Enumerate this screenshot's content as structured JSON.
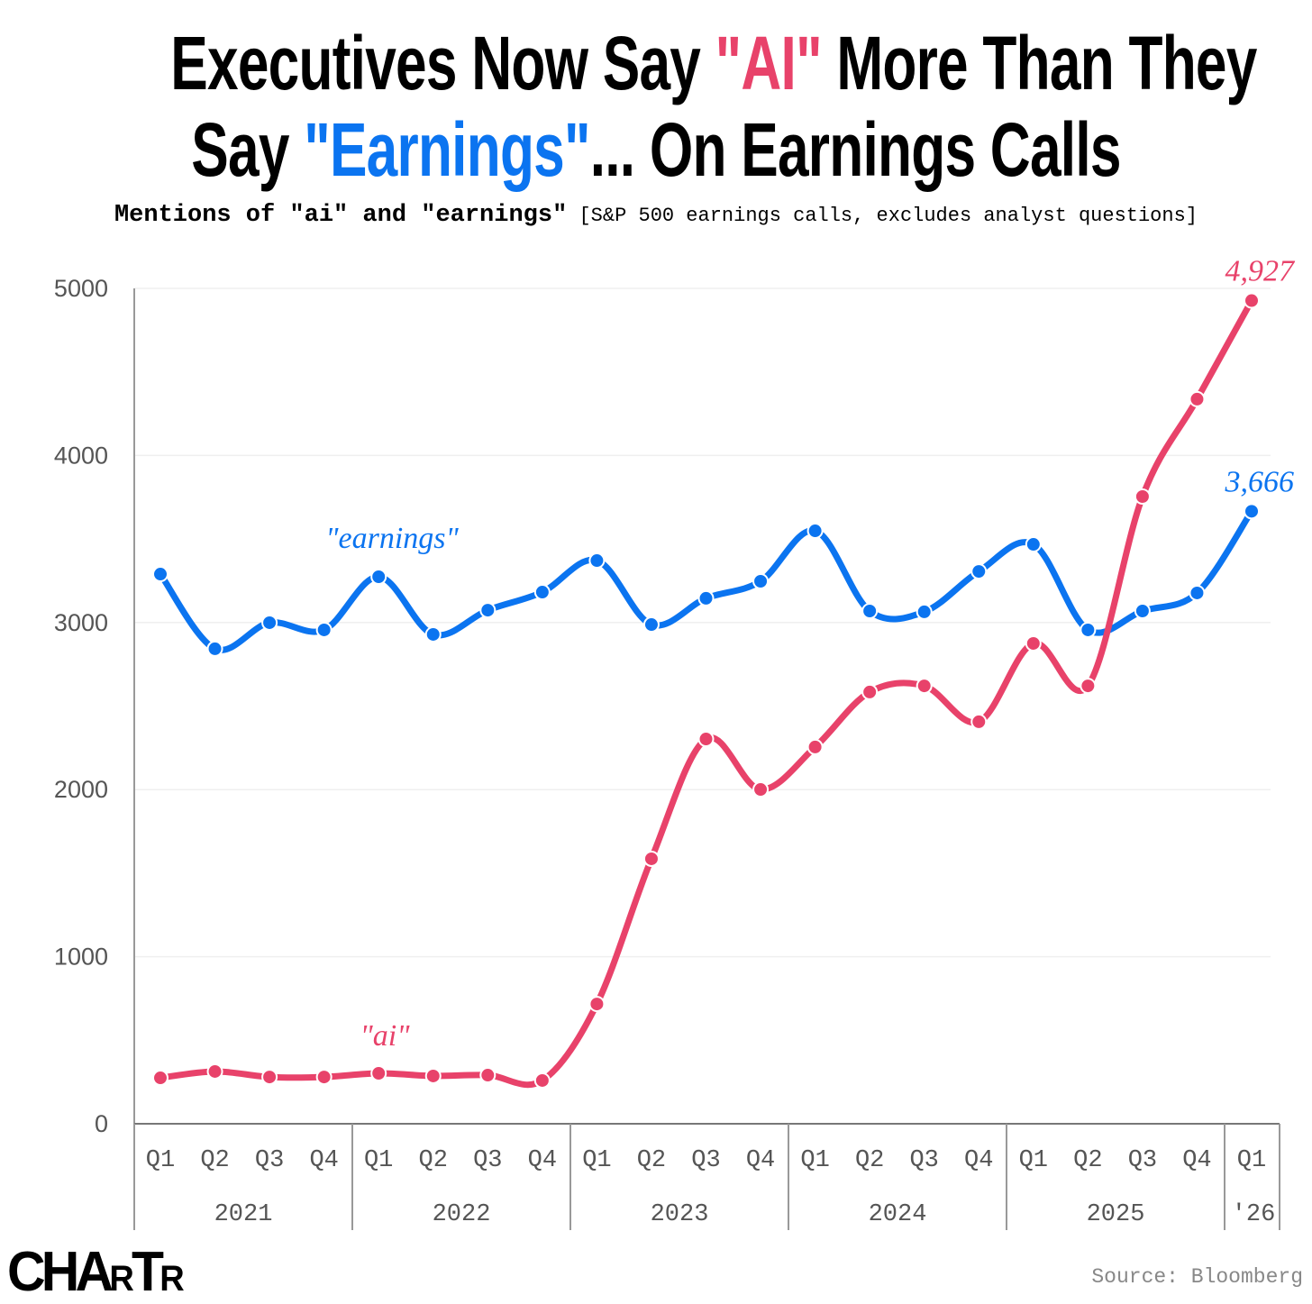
{
  "title": {
    "line1_a": "Executives Now Say ",
    "line1_ai": "\"AI\"",
    "line1_b": " More Than They",
    "line2_a": "Say ",
    "line2_earnings": "\"Earnings\"",
    "line2_b": "... On Earnings Calls"
  },
  "subtitle": {
    "bold": "Mentions of \"ai\" and \"earnings\"",
    "note": " [S&P 500 earnings calls, excludes analyst questions]"
  },
  "logo": "CHARTR",
  "source": "Source: Bloomberg",
  "chart_data": {
    "type": "line",
    "title": "Executives Now Say \"AI\" More Than They Say \"Earnings\"... On Earnings Calls",
    "x": [
      "Q1 2021",
      "Q2 2021",
      "Q3 2021",
      "Q4 2021",
      "Q1 2022",
      "Q2 2022",
      "Q3 2022",
      "Q4 2022",
      "Q1 2023",
      "Q2 2023",
      "Q3 2023",
      "Q4 2023",
      "Q1 2024",
      "Q2 2024",
      "Q3 2024",
      "Q4 2024",
      "Q1 2025",
      "Q2 2025",
      "Q3 2025",
      "Q4 2025",
      "Q1 2026"
    ],
    "quarter_labels": [
      "Q1",
      "Q2",
      "Q3",
      "Q4",
      "Q1",
      "Q2",
      "Q3",
      "Q4",
      "Q1",
      "Q2",
      "Q3",
      "Q4",
      "Q1",
      "Q2",
      "Q3",
      "Q4",
      "Q1",
      "Q2",
      "Q3",
      "Q4",
      "Q1"
    ],
    "year_labels": [
      "2021",
      "2022",
      "2023",
      "2024",
      "2025",
      "'26"
    ],
    "ylim": [
      0,
      5000
    ],
    "yticks": [
      "0",
      "1000",
      "2000",
      "3000",
      "4000",
      "5000"
    ],
    "grid": true,
    "series": [
      {
        "name": "\"earnings\"",
        "color": "#0b74f0",
        "values": [
          3290,
          2843,
          2999,
          2956,
          3274,
          2929,
          3074,
          3182,
          3371,
          2988,
          3145,
          3247,
          3549,
          3069,
          3064,
          3306,
          3468,
          2956,
          3069,
          3177,
          3666
        ],
        "end_label": "3,666"
      },
      {
        "name": "\"ai\"",
        "color": "#e8426a",
        "values": [
          275,
          313,
          280,
          280,
          302,
          286,
          291,
          259,
          717,
          1586,
          2303,
          2001,
          2255,
          2584,
          2621,
          2406,
          2875,
          2621,
          3754,
          4337,
          4927
        ],
        "end_label": "4,927"
      }
    ]
  }
}
